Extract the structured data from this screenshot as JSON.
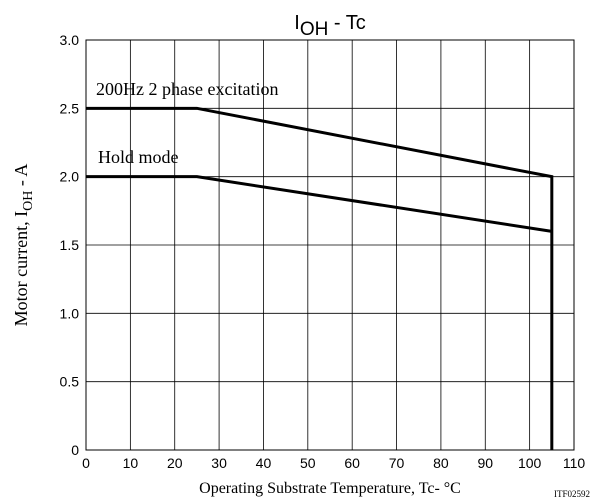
{
  "chart_data": {
    "type": "line",
    "title_main": "I",
    "title_sub": "OH",
    "title_rest": " - Tc",
    "xlabel": "Operating Substrate Temperature, Tc- °C",
    "ylabel_main": "Motor current, I",
    "ylabel_sub": "OH",
    "ylabel_rest": " - A",
    "xlim": [
      0,
      110
    ],
    "ylim": [
      0,
      3.0
    ],
    "xticks": [
      "0",
      "10",
      "20",
      "30",
      "40",
      "50",
      "60",
      "70",
      "80",
      "90",
      "100",
      "110"
    ],
    "yticks": [
      "0",
      "0.5",
      "1.0",
      "1.5",
      "2.0",
      "2.5",
      "3.0"
    ],
    "grid": true,
    "series": [
      {
        "name": "200Hz 2 phase excitation",
        "x": [
          0,
          25,
          105,
          105
        ],
        "y": [
          2.5,
          2.5,
          2.0,
          0
        ]
      },
      {
        "name": "Hold mode",
        "x": [
          0,
          25,
          105
        ],
        "y": [
          2.0,
          2.0,
          1.6
        ]
      }
    ],
    "code": "ITF02592"
  }
}
